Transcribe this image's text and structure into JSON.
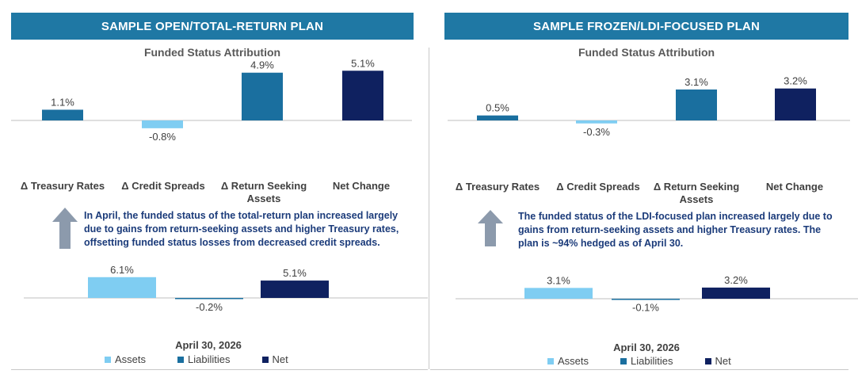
{
  "colors": {
    "header_bg": "#1f78a4",
    "assets": "#7fcdf2",
    "liabilities": "#1a6f9f",
    "net": "#0f2160",
    "light_blue": "#7fcdf2",
    "note_text": "#1b3b7a",
    "arrow": "#8c9aac"
  },
  "left": {
    "header": "SAMPLE OPEN/TOTAL-RETURN PLAN",
    "attribution_title": "Funded Status Attribution",
    "note": "In April, the funded status of the total-return plan increased largely due to gains from return-seeking assets and higher Treasury rates, offsetting funded status losses from decreased credit spreads.",
    "arrow_icon": "up-arrow-icon",
    "snapshot_title": "April 30, 2026"
  },
  "right": {
    "header": "SAMPLE FROZEN/LDI-FOCUSED PLAN",
    "attribution_title": "Funded Status Attribution",
    "note": "The funded status of the LDI-focused plan increased largely due to gains from return-seeking assets and higher Treasury rates. The plan is ~94% hedged as of April 30.",
    "arrow_icon": "up-arrow-icon",
    "snapshot_title": "April 30, 2026"
  },
  "legend": [
    {
      "label": "Assets",
      "color_key": "assets"
    },
    {
      "label": "Liabilities",
      "color_key": "liabilities"
    },
    {
      "label": "Net",
      "color_key": "net"
    }
  ],
  "chart_data": [
    {
      "type": "bar",
      "title": "Funded Status Attribution",
      "categories": [
        "Δ Treasury Rates",
        "Δ Credit Spreads",
        "Δ Return Seeking Assets",
        "Net Change"
      ],
      "values": [
        1.1,
        -0.8,
        4.9,
        5.1
      ],
      "data_labels": [
        "1.1%",
        "-0.8%",
        "4.9%",
        "5.1%"
      ],
      "unit": "%"
    },
    {
      "type": "bar",
      "title": "April 30, 2026",
      "categories": [
        "Assets",
        "Liabilities",
        "Net"
      ],
      "values": [
        6.1,
        -0.2,
        5.1
      ],
      "data_labels": [
        "6.1%",
        "-0.2%",
        "5.1%"
      ],
      "unit": "%",
      "legend": "bottom"
    },
    {
      "type": "bar",
      "title": "Funded Status Attribution",
      "categories": [
        "Δ Treasury Rates",
        "Δ Credit Spreads",
        "Δ Return Seeking Assets",
        "Net Change"
      ],
      "values": [
        0.5,
        -0.3,
        3.1,
        3.2
      ],
      "data_labels": [
        "0.5%",
        "-0.3%",
        "3.1%",
        "3.2%"
      ],
      "unit": "%"
    },
    {
      "type": "bar",
      "title": "April 30, 2026",
      "categories": [
        "Assets",
        "Liabilities",
        "Net"
      ],
      "values": [
        3.1,
        -0.1,
        3.2
      ],
      "data_labels": [
        "3.1%",
        "-0.1%",
        "3.2%"
      ],
      "unit": "%",
      "legend": "bottom"
    }
  ]
}
